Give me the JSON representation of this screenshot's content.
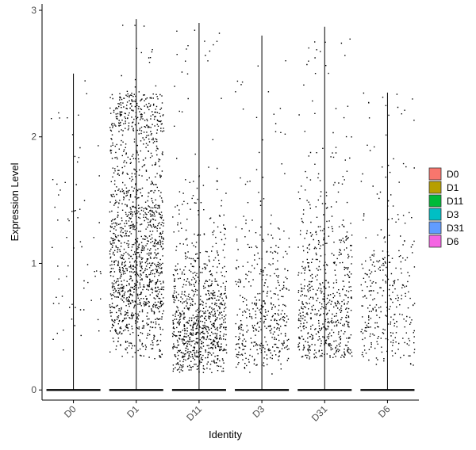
{
  "chart_data": {
    "type": "violin-jitter",
    "title": "",
    "xlabel": "Identity",
    "ylabel": "Expression Level",
    "ylim": [
      -0.08,
      3.05
    ],
    "yticks": [
      0,
      1,
      2,
      3
    ],
    "categories": [
      "D0",
      "D1",
      "D11",
      "D3",
      "D31",
      "D6"
    ],
    "grid": false,
    "legend_position": "right",
    "series": [
      {
        "name": "D0",
        "color": "#F8766D",
        "max": 2.5,
        "expressing_count": 70,
        "expr_min": 0.3,
        "expr_max": 2.45,
        "expr_median": 1.1
      },
      {
        "name": "D1",
        "color": "#B79F00",
        "max": 2.93,
        "expressing_count": 1500,
        "expr_min": 0.25,
        "expr_max": 2.35,
        "expr_median": 1.15
      },
      {
        "name": "D11",
        "color": "#00BA38",
        "max": 2.9,
        "expressing_count": 900,
        "expr_min": 0.13,
        "expr_max": 2.5,
        "expr_median": 0.55
      },
      {
        "name": "D3",
        "color": "#00BFC4",
        "max": 2.8,
        "expressing_count": 450,
        "expr_min": 0.13,
        "expr_max": 2.3,
        "expr_median": 0.6
      },
      {
        "name": "D31",
        "color": "#619CFF",
        "max": 2.87,
        "expressing_count": 650,
        "expr_min": 0.25,
        "expr_max": 2.6,
        "expr_median": 0.7
      },
      {
        "name": "D6",
        "color": "#F564E3",
        "max": 2.35,
        "expressing_count": 330,
        "expr_min": 0.2,
        "expr_max": 2.35,
        "expr_median": 0.75
      }
    ]
  },
  "legend": {
    "items": [
      {
        "label": "D0",
        "color": "#F8766D"
      },
      {
        "label": "D1",
        "color": "#B79F00"
      },
      {
        "label": "D11",
        "color": "#00BA38"
      },
      {
        "label": "D3",
        "color": "#00BFC4"
      },
      {
        "label": "D31",
        "color": "#619CFF"
      },
      {
        "label": "D6",
        "color": "#F564E3"
      }
    ]
  }
}
